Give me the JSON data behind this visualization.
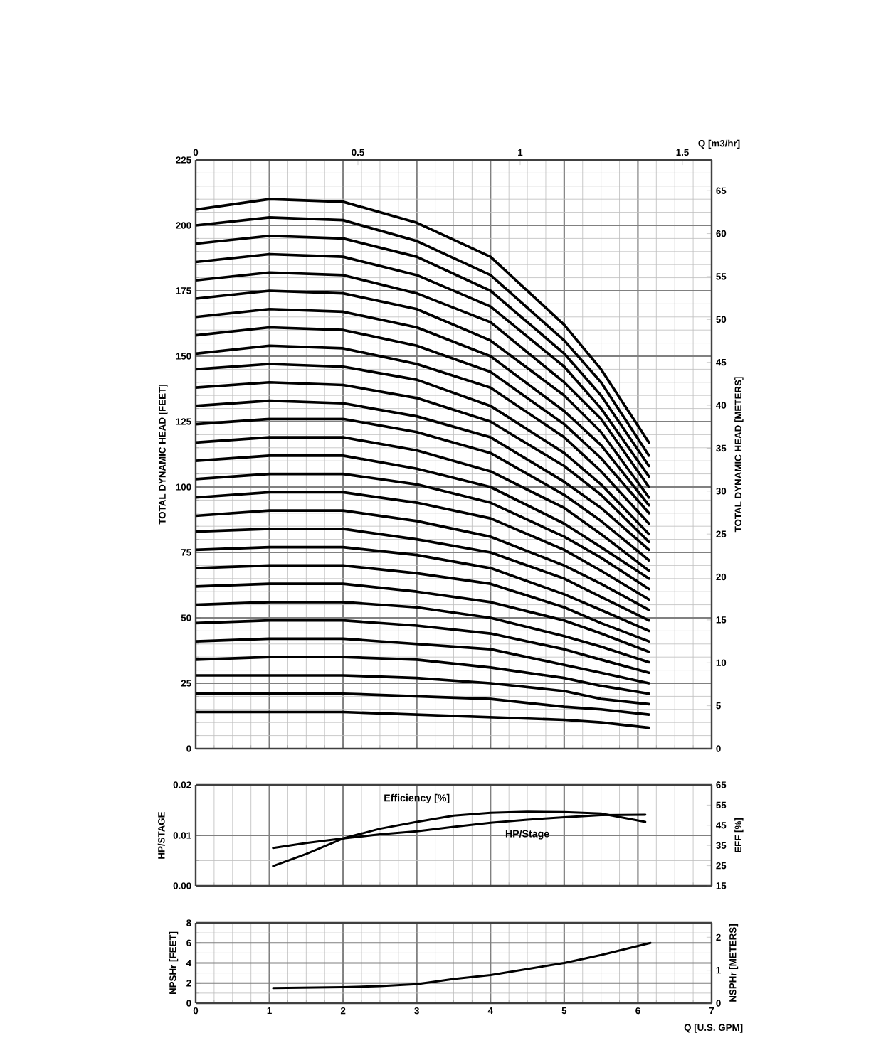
{
  "chart_data": [
    {
      "type": "line",
      "ylabel": "TOTAL DYNAMIC HEAD [FEET]",
      "y2label": "TOTAL DYNAMIC HEAD [METERS]",
      "x2label": "Q [m3/hr]",
      "x": [
        0,
        1,
        2,
        3,
        4,
        5,
        5.5,
        6.15
      ],
      "xlim": [
        0,
        7
      ],
      "xticks": [
        0,
        1,
        2,
        3,
        4,
        5,
        6,
        7
      ],
      "ylim": [
        0,
        225
      ],
      "yticks": [
        0,
        25,
        50,
        75,
        100,
        125,
        150,
        175,
        200,
        225
      ],
      "y2lim": [
        0,
        68.58
      ],
      "y2ticks": [
        0,
        5,
        10,
        15,
        20,
        25,
        30,
        35,
        40,
        45,
        50,
        55,
        60,
        65
      ],
      "x2lim": [
        0,
        1.59
      ],
      "x2ticks": [
        0,
        0.5,
        1,
        1.5
      ],
      "tick_labels": "y",
      "grid": true,
      "series": [
        {
          "color": "#000000",
          "values": [
            14,
            14,
            14,
            13,
            12,
            11,
            10,
            8
          ]
        },
        {
          "color": "#000000",
          "values": [
            21,
            21,
            21,
            20,
            19,
            16,
            15,
            13
          ]
        },
        {
          "color": "#000000",
          "values": [
            28,
            28,
            28,
            27,
            25,
            22,
            19,
            17
          ]
        },
        {
          "color": "#000000",
          "values": [
            34,
            35,
            35,
            34,
            31,
            27,
            24,
            21
          ]
        },
        {
          "color": "#000000",
          "values": [
            41,
            42,
            42,
            40,
            38,
            32,
            29,
            25
          ]
        },
        {
          "color": "#000000",
          "values": [
            48,
            49,
            49,
            47,
            44,
            38,
            34,
            29
          ]
        },
        {
          "color": "#000000",
          "values": [
            55,
            56,
            56,
            54,
            50,
            43,
            39,
            33
          ]
        },
        {
          "color": "#000000",
          "values": [
            62,
            63,
            63,
            60,
            56,
            49,
            44,
            37
          ]
        },
        {
          "color": "#000000",
          "values": [
            69,
            70,
            70,
            67,
            63,
            54,
            48,
            41
          ]
        },
        {
          "color": "#000000",
          "values": [
            76,
            77,
            77,
            74,
            69,
            59,
            53,
            45
          ]
        },
        {
          "color": "#000000",
          "values": [
            83,
            84,
            84,
            80,
            75,
            65,
            58,
            49
          ]
        },
        {
          "color": "#000000",
          "values": [
            89,
            91,
            91,
            87,
            81,
            70,
            63,
            53
          ]
        },
        {
          "color": "#000000",
          "values": [
            96,
            98,
            98,
            94,
            88,
            76,
            68,
            57
          ]
        },
        {
          "color": "#000000",
          "values": [
            103,
            105,
            105,
            101,
            94,
            81,
            73,
            61
          ]
        },
        {
          "color": "#000000",
          "values": [
            110,
            112,
            112,
            107,
            100,
            86,
            77,
            65
          ]
        },
        {
          "color": "#000000",
          "values": [
            117,
            119,
            119,
            114,
            106,
            92,
            82,
            68
          ]
        },
        {
          "color": "#000000",
          "values": [
            124,
            126,
            126,
            121,
            113,
            97,
            87,
            72
          ]
        },
        {
          "color": "#000000",
          "values": [
            131,
            133,
            132,
            127,
            119,
            102,
            92,
            76
          ]
        },
        {
          "color": "#000000",
          "values": [
            138,
            140,
            139,
            134,
            125,
            108,
            97,
            79
          ]
        },
        {
          "color": "#000000",
          "values": [
            145,
            147,
            146,
            141,
            131,
            113,
            101,
            82
          ]
        },
        {
          "color": "#000000",
          "values": [
            151,
            154,
            153,
            147,
            138,
            119,
            106,
            86
          ]
        },
        {
          "color": "#000000",
          "values": [
            158,
            161,
            160,
            154,
            144,
            124,
            111,
            90
          ]
        },
        {
          "color": "#000000",
          "values": [
            165,
            168,
            167,
            161,
            150,
            129,
            116,
            93
          ]
        },
        {
          "color": "#000000",
          "values": [
            172,
            175,
            174,
            168,
            156,
            135,
            121,
            96
          ]
        },
        {
          "color": "#000000",
          "values": [
            179,
            182,
            181,
            174,
            163,
            140,
            126,
            100
          ]
        },
        {
          "color": "#000000",
          "values": [
            186,
            189,
            188,
            181,
            169,
            146,
            130,
            104
          ]
        },
        {
          "color": "#000000",
          "values": [
            193,
            196,
            195,
            188,
            175,
            151,
            135,
            108
          ]
        },
        {
          "color": "#000000",
          "values": [
            200,
            203,
            202,
            194,
            181,
            156,
            140,
            112
          ]
        },
        {
          "color": "#000000",
          "values": [
            206,
            210,
            209,
            201,
            188,
            162,
            145,
            117
          ]
        }
      ]
    },
    {
      "type": "line",
      "ylabel": "HP/STAGE",
      "y2label": "EFF [%]",
      "x": [
        1.05,
        1.5,
        2,
        2.5,
        3,
        3.5,
        4,
        4.5,
        5,
        5.5,
        6.1
      ],
      "xlim": [
        0,
        7
      ],
      "xticks": [
        0,
        1,
        2,
        3,
        4,
        5,
        6,
        7
      ],
      "ylim": [
        0,
        0.02
      ],
      "yticks": [
        {
          "value": 0,
          "label": "0.00"
        },
        0.01,
        0.02
      ],
      "y2lim": [
        15,
        65
      ],
      "y2ticks": [
        15,
        25,
        35,
        45,
        55,
        65
      ],
      "tick_labels": "y",
      "grid": true,
      "series": [
        {
          "name": "HP/Stage",
          "color": "#000000",
          "values": [
            0.0075,
            0.0085,
            0.0094,
            0.0102,
            0.0108,
            0.0117,
            0.0125,
            0.0131,
            0.0136,
            0.014,
            0.0141
          ]
        },
        {
          "name": "Efficiency [%]",
          "color": "#000000",
          "axis": "y2",
          "values": [
            24.8,
            30.8,
            38.5,
            43.3,
            46.7,
            49.8,
            51.2,
            51.7,
            51.5,
            50.8,
            46.7
          ]
        }
      ]
    },
    {
      "type": "line",
      "ylabel": "NPSHr [FEET]",
      "y2label": "NSPHr [METERS]",
      "xlabel": "Q [U.S. GPM]",
      "x": [
        1.05,
        2,
        2.5,
        3,
        3.5,
        4,
        4.5,
        5,
        5.5,
        6.17
      ],
      "xlim": [
        0,
        7
      ],
      "xticks": [
        0,
        1,
        2,
        3,
        4,
        5,
        6,
        7
      ],
      "ylim": [
        0,
        8
      ],
      "yticks": [
        0,
        2,
        4,
        6,
        8
      ],
      "y2lim": [
        0,
        2.438
      ],
      "y2ticks": [
        0,
        1,
        2
      ],
      "grid": true,
      "series": [
        {
          "color": "#000000",
          "values": [
            1.5,
            1.6,
            1.7,
            1.9,
            2.4,
            2.8,
            3.4,
            4,
            4.8,
            6
          ]
        }
      ]
    }
  ]
}
